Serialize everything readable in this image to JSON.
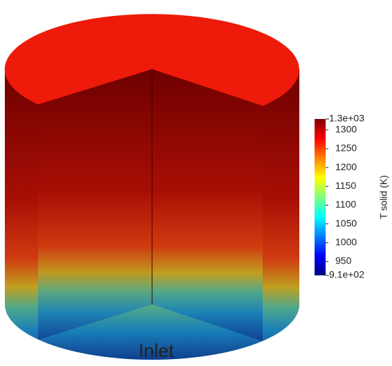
{
  "colorbar": {
    "title": "T solid (K)",
    "range": [
      {
        "value": 913,
        "label": "9.1e+02"
      },
      {
        "value": 1329,
        "label": "1.3e+03"
      }
    ],
    "ticks": [
      950,
      1000,
      1050,
      1100,
      1150,
      1200,
      1250,
      1300
    ],
    "colors": [
      "#00007f",
      "#0000ff",
      "#0080ff",
      "#00ffff",
      "#80ff80",
      "#ffff00",
      "#ff8000",
      "#ff0000",
      "#7f0000"
    ]
  },
  "annotation": "Inlet"
}
